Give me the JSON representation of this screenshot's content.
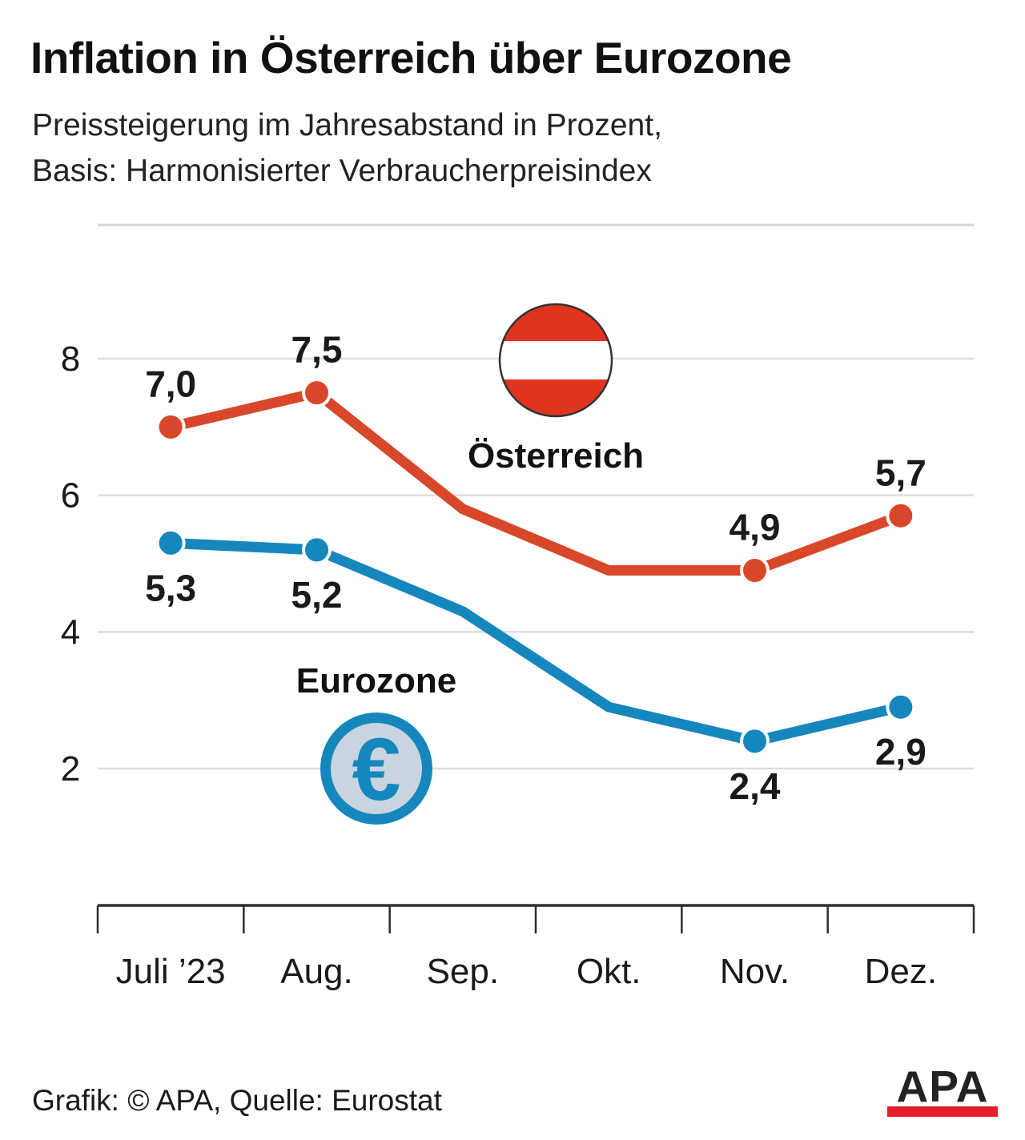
{
  "header": {
    "title": "Inflation in Österreich über Eurozone",
    "subtitle_line1": "Preissteigerung im Jahresabstand in Prozent,",
    "subtitle_line2": "Basis: Harmonisierter Verbraucherpreisindex"
  },
  "chart_data": {
    "type": "line",
    "categories": [
      "Juli ’23",
      "Aug.",
      "Sep.",
      "Okt.",
      "Nov.",
      "Dez."
    ],
    "yticks": [
      8,
      6,
      4,
      2
    ],
    "ylim": [
      2,
      8
    ],
    "grid": "on",
    "series": [
      {
        "name": "Österreich",
        "color": "#d9472b",
        "values": [
          7.0,
          7.5,
          5.8,
          4.9,
          4.9,
          5.7
        ],
        "labeled_points": [
          0,
          1,
          4,
          5
        ],
        "point_labels": [
          "7,0",
          "7,5",
          "4,9",
          "5,7"
        ],
        "label_position": "above"
      },
      {
        "name": "Eurozone",
        "color": "#1687bd",
        "values": [
          5.3,
          5.2,
          4.3,
          2.9,
          2.4,
          2.9
        ],
        "labeled_points": [
          0,
          1,
          4,
          5
        ],
        "point_labels": [
          "5,3",
          "5,2",
          "2,4",
          "2,9"
        ],
        "label_position": "below"
      }
    ]
  },
  "icons": {
    "euro_symbol": "€"
  },
  "footer": {
    "credit": "Grafik: © APA, Quelle: Eurostat",
    "logo_text": "APA"
  },
  "colors": {
    "austria_red": "#d9472b",
    "eurozone_blue": "#1687bd",
    "flag_red": "#e0341f",
    "flag_outline": "#333333",
    "euro_inner": "#c8d4e0",
    "grid": "#dedede",
    "separator": "#d4d4d4",
    "axis": "#2e2e2e",
    "text": "#1a1a1a",
    "apa_red": "#e61d2b"
  }
}
